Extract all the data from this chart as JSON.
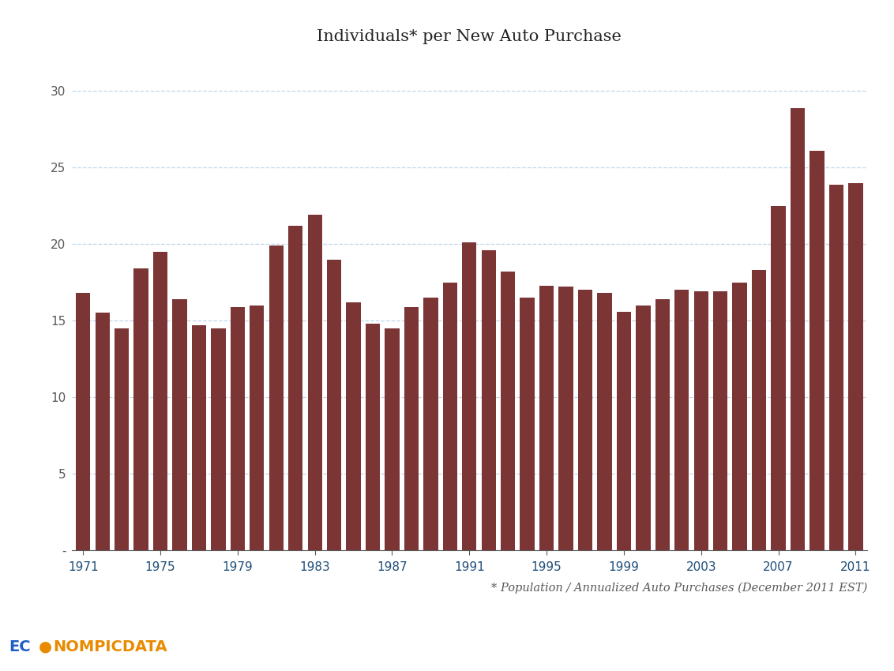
{
  "title": "Individuals* per New Auto Purchase",
  "footnote": "* Population / Annualized Auto Purchases (December 2011 EST)",
  "bar_color": "#7B3535",
  "background_color": "#FFFFFF",
  "years": [
    1971,
    1972,
    1973,
    1974,
    1975,
    1976,
    1977,
    1978,
    1979,
    1980,
    1981,
    1982,
    1983,
    1984,
    1985,
    1986,
    1987,
    1988,
    1989,
    1990,
    1991,
    1992,
    1993,
    1994,
    1995,
    1996,
    1997,
    1998,
    1999,
    2000,
    2001,
    2002,
    2003,
    2004,
    2005,
    2006,
    2007,
    2008,
    2009,
    2010,
    2011
  ],
  "values": [
    16.8,
    15.5,
    14.5,
    18.4,
    19.5,
    16.4,
    14.7,
    14.5,
    15.9,
    16.0,
    19.9,
    21.2,
    21.9,
    19.0,
    16.2,
    14.8,
    14.5,
    15.9,
    16.5,
    17.5,
    20.1,
    19.6,
    18.2,
    16.5,
    17.3,
    17.2,
    17.0,
    16.8,
    15.6,
    16.0,
    16.4,
    17.0,
    16.9,
    16.9,
    17.5,
    18.3,
    22.5,
    28.9,
    26.1,
    23.9,
    24.0
  ],
  "xtick_years": [
    1971,
    1975,
    1979,
    1983,
    1987,
    1991,
    1995,
    1999,
    2003,
    2007,
    2011
  ],
  "ylim_max": 32,
  "yticks": [
    0,
    5,
    10,
    15,
    20,
    25,
    30
  ],
  "ytick_labels": [
    "-",
    "5",
    "10",
    "15",
    "20",
    "25",
    "30"
  ],
  "grid_color": "#BDD7EE",
  "grid_linestyle": "--",
  "title_fontsize": 15,
  "tick_fontsize": 11,
  "footnote_fontsize": 10.5,
  "xtick_color": "#1F4E79",
  "ytick_color": "#595959",
  "spine_color": "#595959",
  "logo_ec_color": "#1F5CC5",
  "logo_onomicpic_color": "#E88B00",
  "logo_data_color": "#1F5CC5"
}
